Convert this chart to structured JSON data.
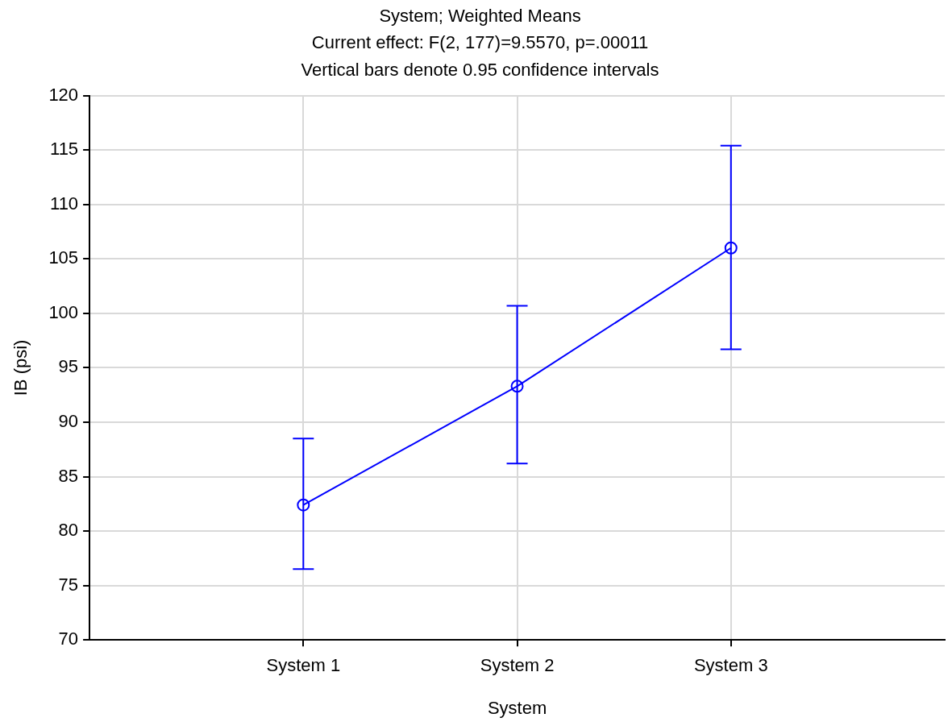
{
  "chart_data": {
    "type": "line",
    "title": "System; Weighted Means",
    "subtitle": "Current effect: F(2, 177)=9.5570, p=.00011",
    "annotations": [
      "Vertical bars denote 0.95 confidence intervals"
    ],
    "xlabel": "System",
    "ylabel": "IB (psi)",
    "categories": [
      "System 1",
      "System 2",
      "System 3"
    ],
    "series": [
      {
        "color": "#0000ff",
        "values": [
          82.4,
          93.3,
          106.0
        ],
        "errors": [
          [
            76.5,
            88.5
          ],
          [
            86.2,
            100.7
          ],
          [
            96.7,
            115.4
          ]
        ]
      }
    ],
    "ylim": [
      70,
      120
    ],
    "yticks": [
      70,
      75,
      80,
      85,
      90,
      95,
      100,
      105,
      110,
      115,
      120
    ],
    "grid": true,
    "legend": false,
    "marker": "circle",
    "line_style": "solid"
  }
}
